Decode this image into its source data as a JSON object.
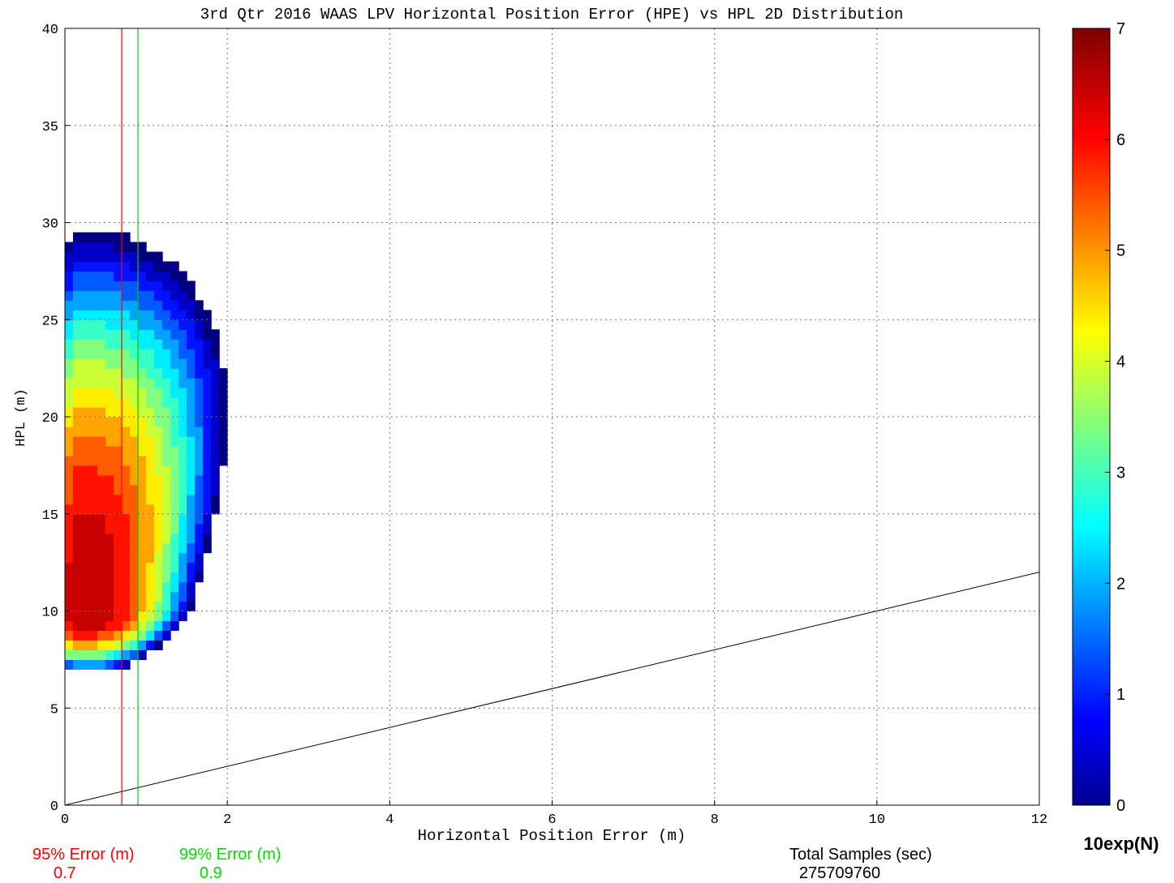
{
  "chart_data": {
    "type": "heatmap",
    "title": "3rd Qtr 2016 WAAS LPV Horizontal Position Error (HPE) vs HPL 2D Distribution",
    "xlabel": "Horizontal Position Error (m)",
    "ylabel": "HPL (m)",
    "xlim": [
      0,
      12
    ],
    "ylim": [
      0,
      40
    ],
    "x_ticks": [
      "0",
      "2",
      "4",
      "6",
      "8",
      "10",
      "12"
    ],
    "y_ticks": [
      "0",
      "5",
      "10",
      "15",
      "20",
      "25",
      "30",
      "35",
      "40"
    ],
    "grid": true,
    "colorbar": {
      "label": "10exp(N)",
      "range": [
        0,
        7
      ],
      "ticks": [
        "0",
        "1",
        "2",
        "3",
        "4",
        "5",
        "6",
        "7"
      ],
      "colormap": "jet"
    },
    "density_model": {
      "peak_log10_count": 7,
      "peak_hpe_m": 0.3,
      "peak_hpl_m": 10,
      "min_hpl_m": 7,
      "min_hpe_m": 0.1
    },
    "reference_line": {
      "x": [
        0,
        12
      ],
      "y": [
        0,
        12
      ]
    },
    "error_lines": [
      {
        "label": "95% Error (m)",
        "value": 0.7,
        "color": "#ff0000"
      },
      {
        "label": "99% Error (m)",
        "value": 0.9,
        "color": "#00cc00"
      }
    ]
  },
  "stats": {
    "e95_label": "95% Error (m)",
    "e95_value": "0.7",
    "e99_label": "99% Error (m)",
    "e99_value": "0.9",
    "samples_label": "Total Samples (sec)",
    "samples_value": "275709760"
  }
}
